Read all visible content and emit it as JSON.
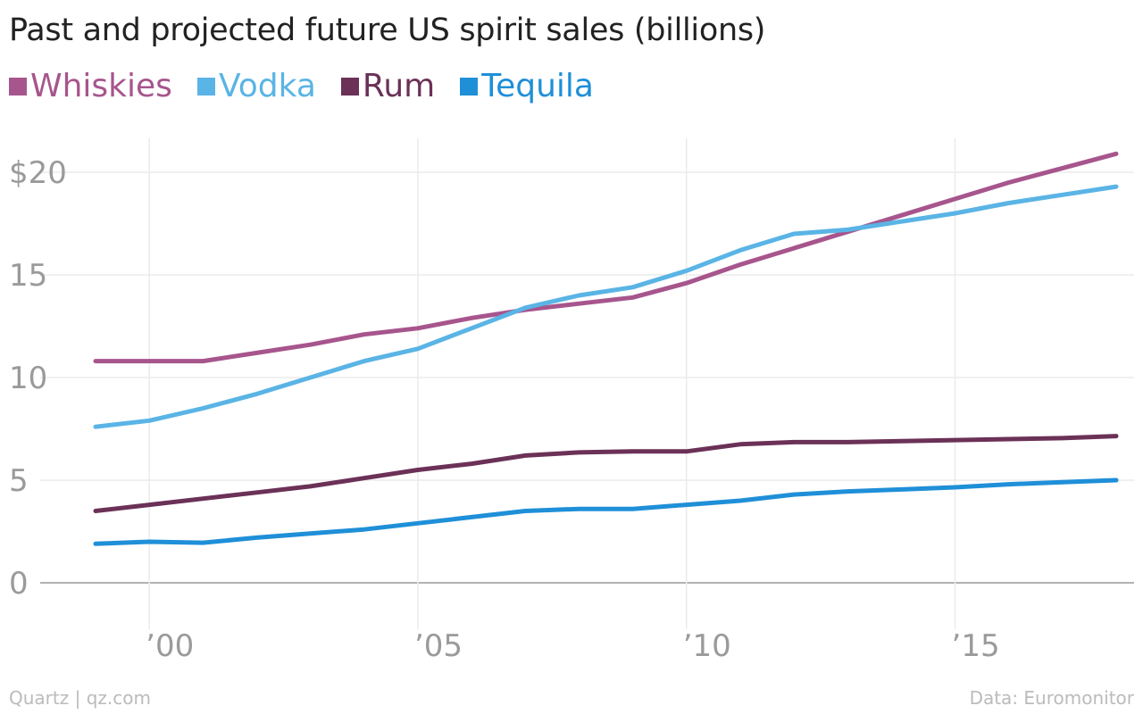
{
  "chart_data": {
    "type": "line",
    "title": "Past and projected future US spirit sales (billions)",
    "x": [
      1999,
      2000,
      2001,
      2002,
      2003,
      2004,
      2005,
      2006,
      2007,
      2008,
      2009,
      2010,
      2011,
      2012,
      2013,
      2014,
      2015,
      2016,
      2017,
      2018
    ],
    "series": [
      {
        "name": "Whiskies",
        "color": "#a7558d",
        "values": [
          10.8,
          10.8,
          10.8,
          11.2,
          11.6,
          12.1,
          12.4,
          12.9,
          13.3,
          13.6,
          13.9,
          14.6,
          15.5,
          16.3,
          17.1,
          17.9,
          18.7,
          19.5,
          20.2,
          20.9
        ]
      },
      {
        "name": "Vodka",
        "color": "#5ab4e5",
        "values": [
          7.6,
          7.9,
          8.5,
          9.2,
          10.0,
          10.8,
          11.4,
          12.4,
          13.4,
          14.0,
          14.4,
          15.2,
          16.2,
          17.0,
          17.2,
          17.6,
          18.0,
          18.5,
          18.9,
          19.3
        ]
      },
      {
        "name": "Rum",
        "color": "#6b3157",
        "values": [
          3.5,
          3.8,
          4.1,
          4.4,
          4.7,
          5.1,
          5.5,
          5.8,
          6.2,
          6.35,
          6.4,
          6.4,
          6.75,
          6.85,
          6.85,
          6.9,
          6.95,
          7.0,
          7.05,
          7.15
        ]
      },
      {
        "name": "Tequila",
        "color": "#1f8fd8",
        "values": [
          1.9,
          2.0,
          1.95,
          2.2,
          2.4,
          2.6,
          2.9,
          3.2,
          3.5,
          3.6,
          3.6,
          3.8,
          4.0,
          4.3,
          4.45,
          4.55,
          4.65,
          4.8,
          4.9,
          5.0
        ]
      }
    ],
    "y_ticks": [
      {
        "value": 0,
        "label": "0"
      },
      {
        "value": 5,
        "label": "5"
      },
      {
        "value": 10,
        "label": "10"
      },
      {
        "value": 15,
        "label": "15"
      },
      {
        "value": 20,
        "label": "$20"
      }
    ],
    "x_ticks": [
      {
        "value": 2000,
        "label": "’00"
      },
      {
        "value": 2005,
        "label": "’05"
      },
      {
        "value": 2010,
        "label": "’10"
      },
      {
        "value": 2015,
        "label": "’15"
      }
    ],
    "xlim": [
      1998,
      2018
    ],
    "ylim": [
      0,
      21
    ],
    "grid": true,
    "legend": "top-left"
  },
  "footer": {
    "source_left": "Quartz | qz.com",
    "source_right": "Data: Euromonitor"
  }
}
